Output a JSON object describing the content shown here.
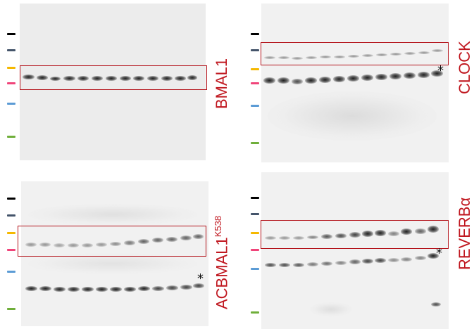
{
  "panels": {
    "bmal1": {
      "label": "BMAL1"
    },
    "clock": {
      "label": "CLOCK",
      "asterisk": "*"
    },
    "acbmal1": {
      "label_main": "ACBMAL1",
      "label_sup": "K538",
      "asterisk": "*"
    },
    "reverb": {
      "label": "REVERBα",
      "asterisk": "*"
    }
  },
  "colors": {
    "box_outline": "#b3121a",
    "label_text": "#c01820",
    "marker_black": "#000000",
    "marker_gray": "#44546a",
    "marker_yellow": "#f5b800",
    "marker_pink": "#f0447a",
    "marker_blue": "#5b9bd5",
    "marker_green": "#6fae3a"
  }
}
